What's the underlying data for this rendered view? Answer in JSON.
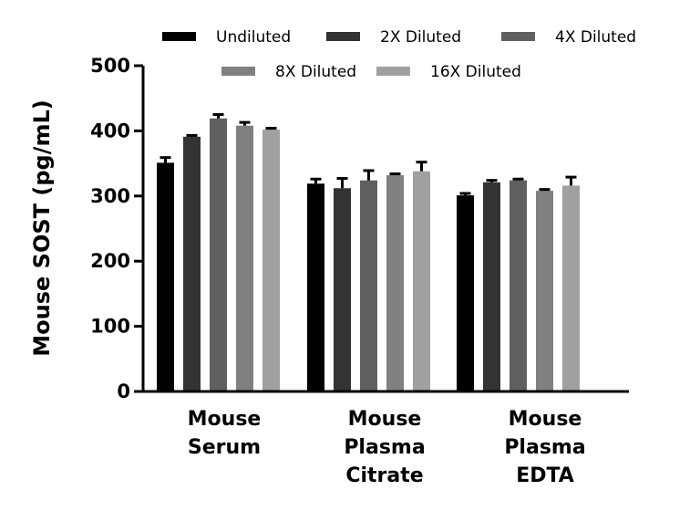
{
  "chart_data": {
    "type": "bar",
    "ylabel": "Mouse SOST (pg/mL)",
    "xlabel": "",
    "ylim": [
      0,
      500
    ],
    "yticks": [
      0,
      100,
      200,
      300,
      400,
      500
    ],
    "grid": false,
    "legend_position": "top",
    "categories": [
      [
        "Mouse",
        "Serum"
      ],
      [
        "Mouse",
        "Plasma",
        "Citrate"
      ],
      [
        "Mouse",
        "Plasma",
        "EDTA"
      ]
    ],
    "series": [
      {
        "name": "Undiluted",
        "color": "#000000",
        "values": [
          351,
          319,
          301
        ],
        "error": [
          8,
          7,
          3
        ]
      },
      {
        "name": "2X Diluted",
        "color": "#333333",
        "values": [
          391,
          312,
          321
        ],
        "error": [
          2,
          15,
          3
        ]
      },
      {
        "name": "4X Diluted",
        "color": "#606060",
        "values": [
          419,
          324,
          324
        ],
        "error": [
          6,
          15,
          2
        ]
      },
      {
        "name": "8X Diluted",
        "color": "#808080",
        "values": [
          408,
          332,
          308
        ],
        "error": [
          5,
          2,
          2
        ]
      },
      {
        "name": "16X Diluted",
        "color": "#a0a0a0",
        "values": [
          402,
          338,
          316
        ],
        "error": [
          2,
          14,
          13
        ]
      }
    ]
  }
}
